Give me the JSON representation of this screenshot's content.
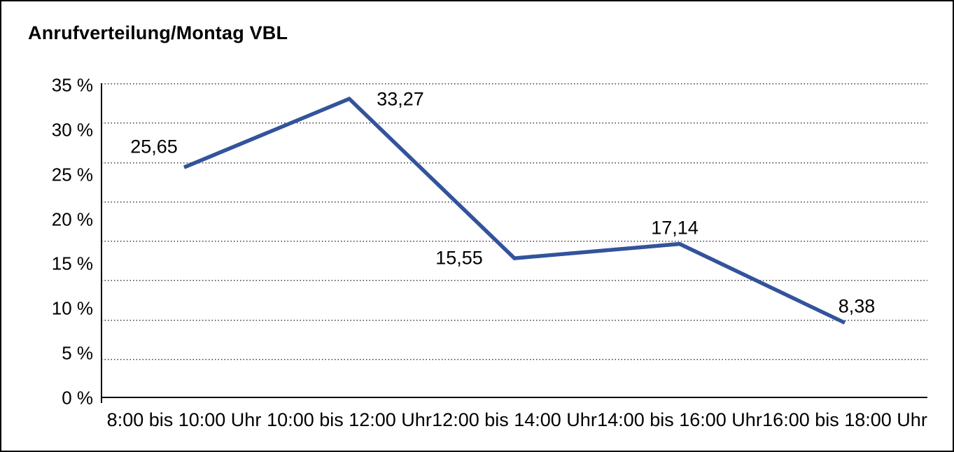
{
  "title": "Anrufverteilung/Montag VBL",
  "chart_data": {
    "type": "line",
    "title": "Anrufverteilung/Montag VBL",
    "categories": [
      "8:00 bis 10:00 Uhr",
      "10:00 bis 12:00 Uhr",
      "12:00 bis 14:00 Uhr",
      "14:00 bis 16:00 Uhr",
      "16:00 bis 18:00 Uhr"
    ],
    "values": [
      25.65,
      33.27,
      15.55,
      17.14,
      8.38
    ],
    "value_labels": [
      "25,65",
      "33,27",
      "15,55",
      "17,14",
      "8,38"
    ],
    "y_ticks": [
      "35 %",
      "30 %",
      "25 %",
      "20 %",
      "15 %",
      "10 %",
      "5 %",
      "0 %"
    ],
    "ylim": [
      0,
      35
    ],
    "xlabel": "",
    "ylabel": "",
    "legend_position": "none",
    "grid": "horizontal-dotted",
    "line_color": "#33539C",
    "axis_color": "#000000",
    "text_color": "#000000"
  }
}
